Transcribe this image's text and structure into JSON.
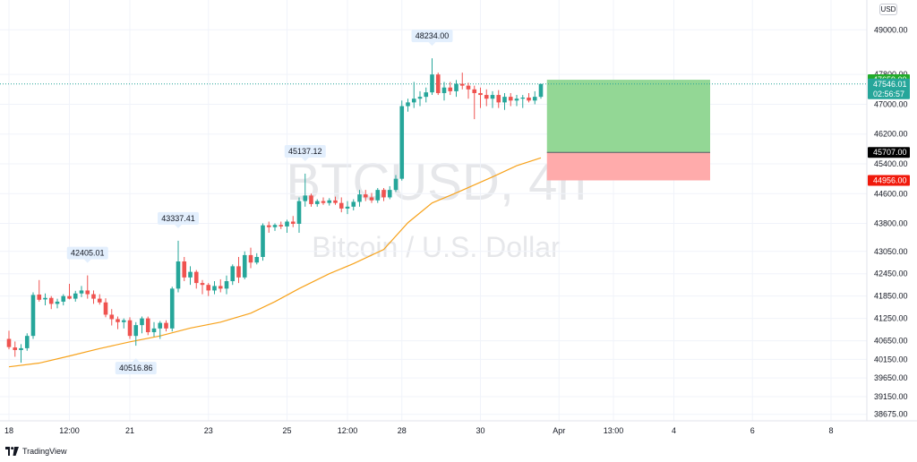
{
  "chart_data": {
    "type": "candlestick",
    "title": "BTCUSD, 4h",
    "subtitle": "Bitcoin / U.S. Dollar",
    "currency": "USD",
    "brand": "TradingView",
    "y_range": [
      38500,
      49800
    ],
    "x_range": [
      0,
      137
    ],
    "price_ticks": [
      49000,
      47800,
      47000,
      46200,
      45400,
      44600,
      43800,
      43050,
      42450,
      41850,
      41250,
      40650,
      40150,
      39650,
      39150,
      38675
    ],
    "price_tick_labels": [
      "49000.00",
      "47800.00",
      "47000.00",
      "46200.00",
      "45400.00",
      "44600.00",
      "43800.00",
      "43050.00",
      "42450.00",
      "41850.00",
      "41250.00",
      "40650.00",
      "40150.00",
      "39650.00",
      "39150.00",
      "38675.00"
    ],
    "time_labels": [
      {
        "i": 0,
        "label": "18"
      },
      {
        "i": 10,
        "label": "12:00"
      },
      {
        "i": 20,
        "label": "21"
      },
      {
        "i": 33,
        "label": "23"
      },
      {
        "i": 46,
        "label": "25"
      },
      {
        "i": 56,
        "label": "12:00"
      },
      {
        "i": 65,
        "label": "28"
      },
      {
        "i": 78,
        "label": "30"
      },
      {
        "i": 91,
        "label": "Apr"
      },
      {
        "i": 100,
        "label": "13:00"
      },
      {
        "i": 110,
        "label": "4"
      },
      {
        "i": 123,
        "label": "6"
      },
      {
        "i": 136,
        "label": "8"
      }
    ],
    "candles": [
      [
        0,
        40700,
        40920,
        40420,
        40480
      ],
      [
        1,
        40470,
        40630,
        40220,
        40400
      ],
      [
        2,
        40400,
        40560,
        40060,
        40450
      ],
      [
        3,
        40450,
        40850,
        40380,
        40780
      ],
      [
        4,
        40780,
        41950,
        40700,
        41880
      ],
      [
        5,
        41890,
        42280,
        41700,
        41750
      ],
      [
        6,
        41760,
        41920,
        41600,
        41800
      ],
      [
        7,
        41800,
        41850,
        41500,
        41640
      ],
      [
        8,
        41640,
        41780,
        41520,
        41700
      ],
      [
        9,
        41700,
        41900,
        41600,
        41850
      ],
      [
        10,
        41850,
        42180,
        41760,
        41780
      ],
      [
        11,
        41780,
        41990,
        41700,
        41920
      ],
      [
        12,
        41920,
        42120,
        41820,
        42000
      ],
      [
        13,
        42000,
        42405,
        41780,
        41900
      ],
      [
        14,
        41900,
        42000,
        41640,
        41780
      ],
      [
        15,
        41780,
        41900,
        41620,
        41680
      ],
      [
        16,
        41680,
        41790,
        41280,
        41350
      ],
      [
        17,
        41350,
        41500,
        41060,
        41230
      ],
      [
        18,
        41230,
        41300,
        40960,
        41150
      ],
      [
        19,
        41150,
        41250,
        40980,
        41200
      ],
      [
        20,
        41200,
        41280,
        40700,
        40780
      ],
      [
        21,
        40780,
        41150,
        40517,
        41070
      ],
      [
        22,
        41070,
        41300,
        40850,
        41250
      ],
      [
        23,
        41250,
        41300,
        40800,
        40880
      ],
      [
        24,
        40880,
        41150,
        40760,
        40980
      ],
      [
        25,
        40980,
        41180,
        40700,
        41130
      ],
      [
        26,
        41130,
        41200,
        40900,
        40980
      ],
      [
        27,
        40980,
        42100,
        40900,
        42050
      ],
      [
        28,
        42050,
        43337,
        41950,
        42780
      ],
      [
        29,
        42780,
        42900,
        42250,
        42350
      ],
      [
        30,
        42350,
        42650,
        42150,
        42500
      ],
      [
        31,
        42500,
        42550,
        42050,
        42200
      ],
      [
        32,
        42200,
        42280,
        41900,
        42150
      ],
      [
        33,
        42150,
        42200,
        41850,
        42000
      ],
      [
        34,
        42000,
        42250,
        41900,
        42120
      ],
      [
        35,
        42120,
        42300,
        41950,
        42050
      ],
      [
        36,
        42050,
        42400,
        41900,
        42250
      ],
      [
        37,
        42250,
        42700,
        42150,
        42650
      ],
      [
        38,
        42650,
        42900,
        42200,
        42350
      ],
      [
        39,
        42350,
        43050,
        42300,
        42950
      ],
      [
        40,
        42950,
        43150,
        42600,
        42750
      ],
      [
        41,
        42750,
        43000,
        42700,
        42900
      ],
      [
        42,
        42900,
        43800,
        42800,
        43750
      ],
      [
        43,
        43750,
        43850,
        43550,
        43700
      ],
      [
        44,
        43700,
        43800,
        43600,
        43760
      ],
      [
        45,
        43760,
        43850,
        43650,
        43720
      ],
      [
        46,
        43720,
        43900,
        43550,
        43850
      ],
      [
        47,
        43850,
        44000,
        43700,
        43790
      ],
      [
        48,
        43790,
        44500,
        43550,
        44400
      ],
      [
        49,
        44400,
        45137,
        44250,
        44550
      ],
      [
        50,
        44550,
        44600,
        44250,
        44320
      ],
      [
        51,
        44320,
        44450,
        44250,
        44400
      ],
      [
        52,
        44400,
        44500,
        44300,
        44350
      ],
      [
        53,
        44350,
        44480,
        44280,
        44420
      ],
      [
        54,
        44420,
        44520,
        44300,
        44350
      ],
      [
        55,
        44350,
        44500,
        44100,
        44200
      ],
      [
        56,
        44200,
        44400,
        44050,
        44250
      ],
      [
        57,
        44250,
        44450,
        44150,
        44380
      ],
      [
        58,
        44380,
        44700,
        44250,
        44580
      ],
      [
        59,
        44580,
        44700,
        44400,
        44500
      ],
      [
        60,
        44500,
        44620,
        44350,
        44420
      ],
      [
        61,
        44420,
        44750,
        44350,
        44700
      ],
      [
        62,
        44700,
        44750,
        44400,
        44500
      ],
      [
        63,
        44500,
        44800,
        44450,
        44700
      ],
      [
        64,
        44700,
        45100,
        44650,
        45000
      ],
      [
        65,
        45000,
        47100,
        44950,
        46950
      ],
      [
        66,
        46950,
        47150,
        46800,
        47050
      ],
      [
        67,
        47050,
        47600,
        46900,
        47150
      ],
      [
        68,
        47150,
        47350,
        46950,
        47200
      ],
      [
        69,
        47200,
        47450,
        47050,
        47320
      ],
      [
        70,
        47320,
        48234,
        47250,
        47800
      ],
      [
        71,
        47800,
        47850,
        47250,
        47300
      ],
      [
        72,
        47300,
        47600,
        47100,
        47450
      ],
      [
        73,
        47450,
        47600,
        47250,
        47350
      ],
      [
        74,
        47350,
        47650,
        47200,
        47550
      ],
      [
        75,
        47550,
        47850,
        47400,
        47500
      ],
      [
        76,
        47500,
        47580,
        47150,
        47400
      ],
      [
        77,
        47400,
        47500,
        46600,
        47300
      ],
      [
        78,
        47300,
        47450,
        46900,
        47250
      ],
      [
        79,
        47250,
        47400,
        46950,
        47150
      ],
      [
        80,
        47150,
        47350,
        46900,
        47250
      ],
      [
        81,
        47250,
        47380,
        46900,
        47050
      ],
      [
        82,
        47050,
        47300,
        46850,
        47200
      ],
      [
        83,
        47200,
        47300,
        46950,
        47100
      ],
      [
        84,
        47100,
        47250,
        46950,
        47150
      ],
      [
        85,
        47150,
        47250,
        46900,
        47180
      ],
      [
        86,
        47180,
        47300,
        47050,
        47100
      ],
      [
        87,
        47100,
        47350,
        47000,
        47200
      ],
      [
        88,
        47200,
        47550,
        47150,
        47546
      ]
    ],
    "moving_average": [
      [
        0,
        39950
      ],
      [
        5,
        40050
      ],
      [
        10,
        40240
      ],
      [
        15,
        40440
      ],
      [
        20,
        40620
      ],
      [
        25,
        40780
      ],
      [
        30,
        40990
      ],
      [
        35,
        41150
      ],
      [
        40,
        41390
      ],
      [
        44,
        41700
      ],
      [
        48,
        42050
      ],
      [
        53,
        42450
      ],
      [
        57,
        42720
      ],
      [
        62,
        43100
      ],
      [
        66,
        43820
      ],
      [
        70,
        44350
      ],
      [
        74,
        44620
      ],
      [
        80,
        45050
      ],
      [
        84,
        45350
      ],
      [
        88,
        45560
      ]
    ],
    "callouts": [
      {
        "i": 13,
        "value": 42405,
        "label": "42405.01",
        "position": "above"
      },
      {
        "i": 21,
        "value": 40517,
        "label": "40516.86",
        "position": "below"
      },
      {
        "i": 28,
        "value": 43337,
        "label": "43337.41",
        "position": "above"
      },
      {
        "i": 49,
        "value": 45137,
        "label": "45137.12",
        "position": "above"
      },
      {
        "i": 70,
        "value": 48234,
        "label": "48234.00",
        "position": "above"
      }
    ],
    "position_tool": {
      "start_i": 89,
      "end_i": 116,
      "take_profit": 47659,
      "entry": 45707,
      "stop_loss": 44956
    },
    "price_tags": {
      "take_profit": {
        "value": 47659,
        "label": "47659.00",
        "color": "#22ab2a"
      },
      "last_price": {
        "value": 47546,
        "label": "47546.01",
        "countdown": "02:56:57",
        "color": "#26a69a"
      },
      "entry": {
        "value": 45707,
        "label": "45707.00",
        "color": "#000000"
      },
      "stop_loss": {
        "value": 44956,
        "label": "44956.00",
        "color": "#f0190b"
      }
    },
    "colors": {
      "up": "#26a69a",
      "down": "#ef5350",
      "moving_average": "#f7a21b",
      "profit_zone": "#93d795",
      "loss_zone": "#ffabab"
    }
  }
}
